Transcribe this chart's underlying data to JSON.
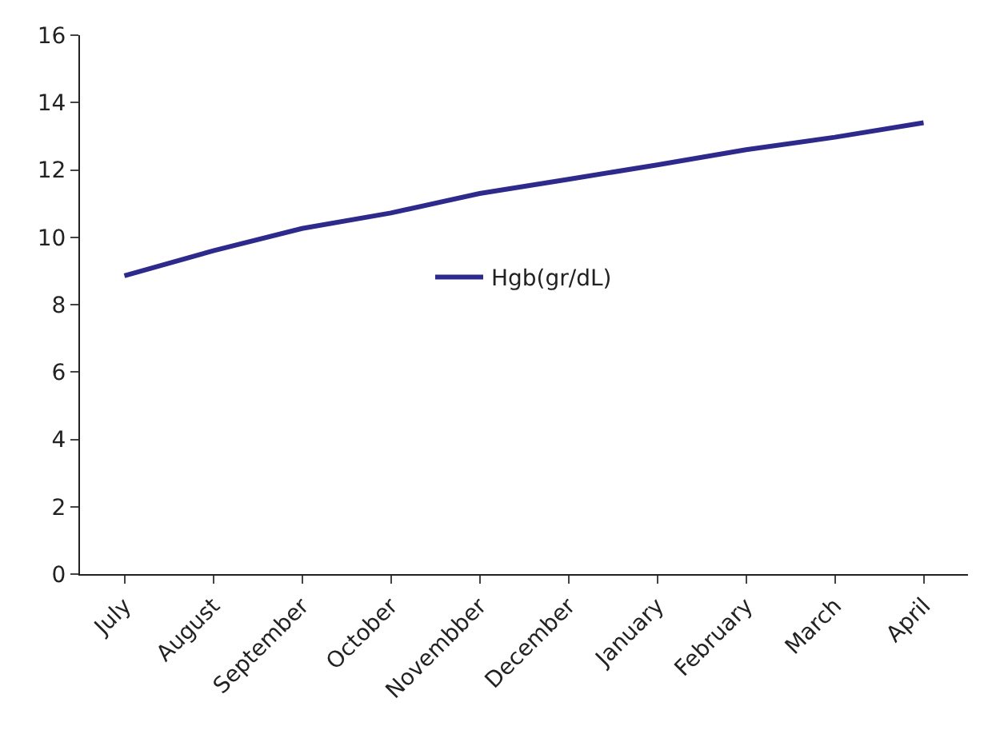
{
  "chart_data": {
    "type": "line",
    "categories": [
      "July",
      "August",
      "September",
      "October",
      "Novembber",
      "December",
      "January",
      "February",
      "March",
      "April"
    ],
    "series": [
      {
        "name": "Hgb(gr/dL)",
        "color": "#2e2a8c",
        "values": [
          8.86,
          9.6,
          10.26,
          10.72,
          11.3,
          11.72,
          12.15,
          12.6,
          12.97,
          13.4
        ]
      }
    ],
    "ylim": [
      0,
      16
    ],
    "yticks": [
      0,
      2,
      4,
      6,
      8,
      10,
      12,
      14,
      16
    ],
    "legend": "center",
    "marker": "none",
    "line_style": "solid"
  }
}
